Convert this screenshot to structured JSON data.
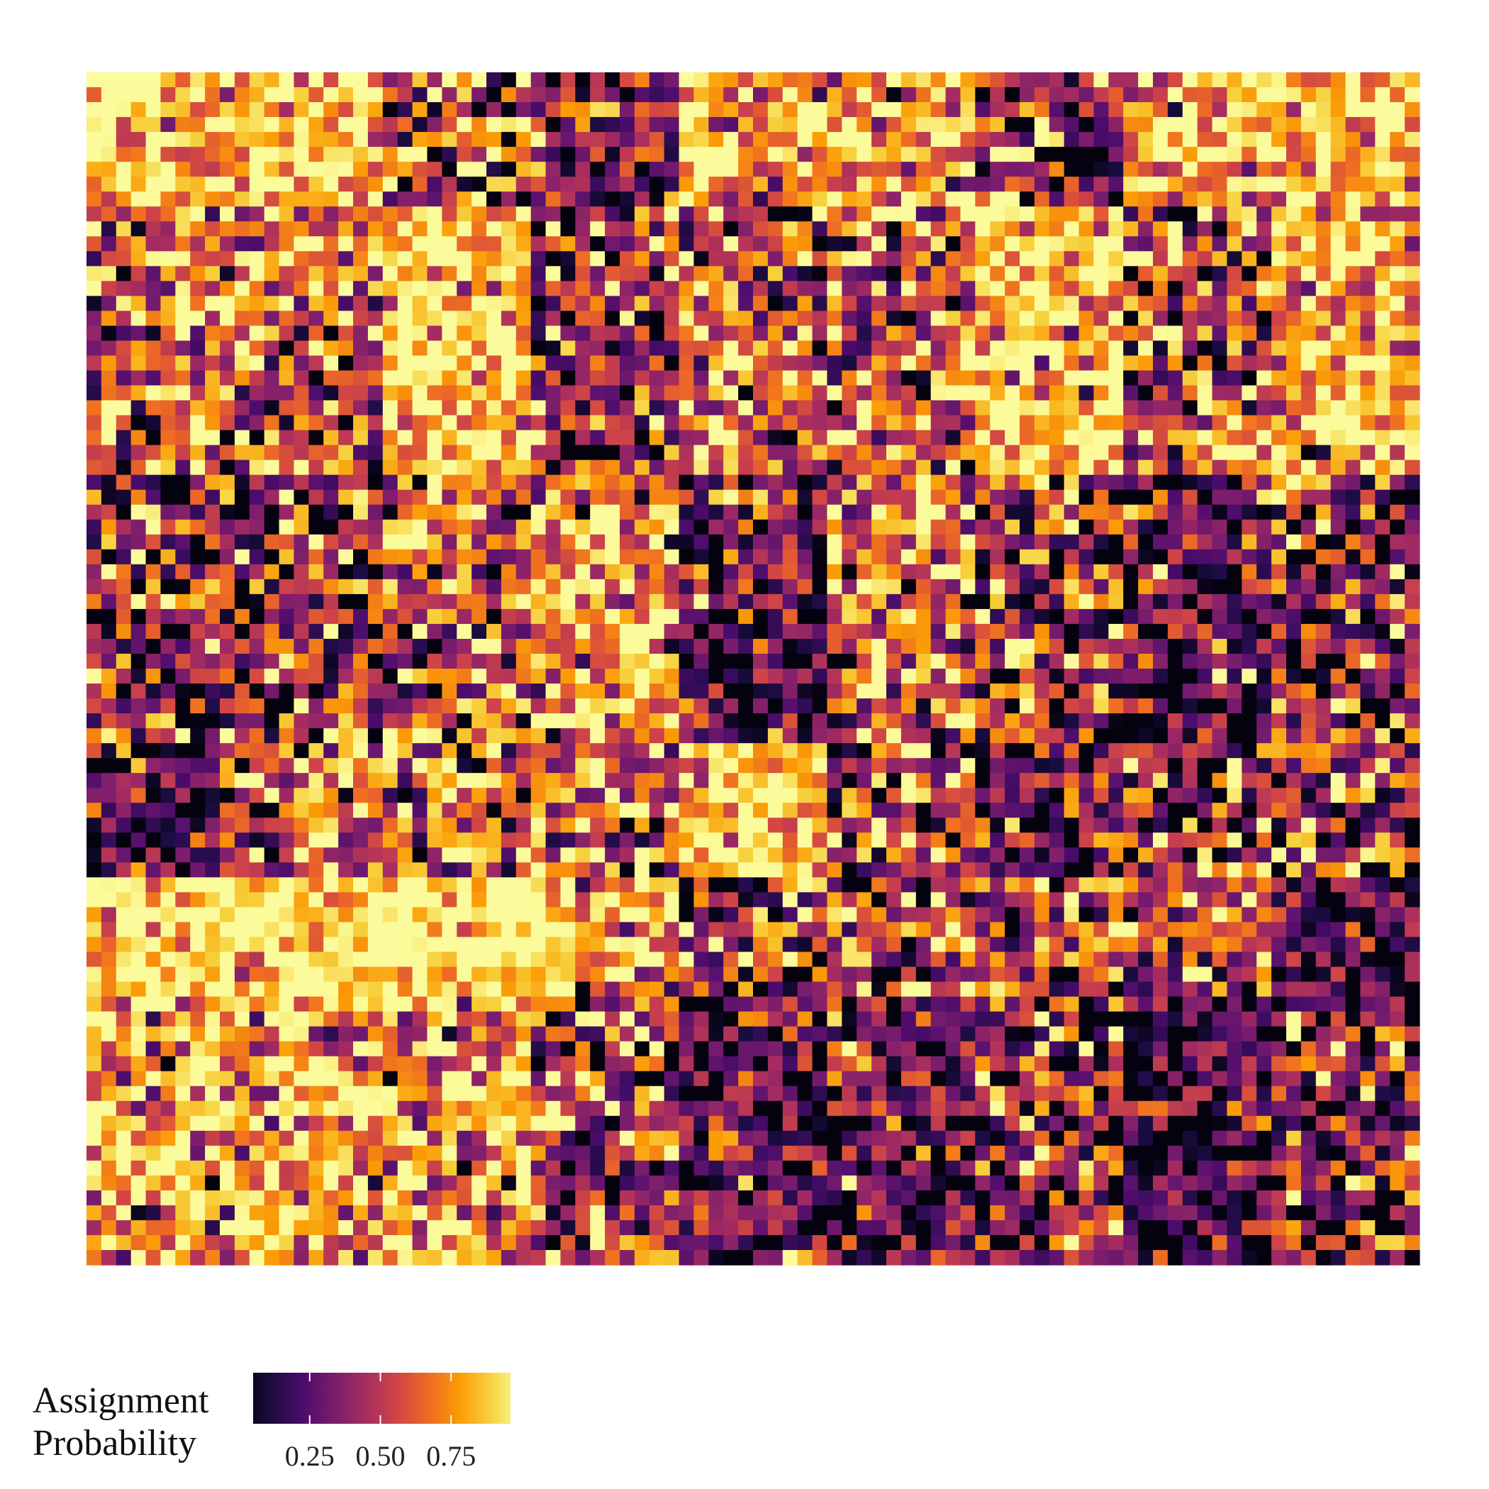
{
  "chart_data": {
    "type": "heatmap",
    "title": "",
    "xlabel": "",
    "ylabel": "",
    "grid": false,
    "rows": 80,
    "cols": 90,
    "colormap": "inferno",
    "colors": [
      "#000004",
      "#1b0c41",
      "#4a0c6b",
      "#781c6d",
      "#a52c60",
      "#cf4446",
      "#ed6925",
      "#fb9b06",
      "#f7d13d",
      "#fcffa4"
    ],
    "zlim": [
      0,
      1
    ],
    "seed": 7,
    "blocks": [
      {
        "r0": 0,
        "r1": 9,
        "c0": 0,
        "c1": 20,
        "v": 0.9
      },
      {
        "r0": 0,
        "r1": 9,
        "c0": 20,
        "c1": 30,
        "v": 0.55
      },
      {
        "r0": 0,
        "r1": 9,
        "c0": 30,
        "c1": 40,
        "v": 0.35
      },
      {
        "r0": 0,
        "r1": 9,
        "c0": 40,
        "c1": 60,
        "v": 0.75
      },
      {
        "r0": 0,
        "r1": 9,
        "c0": 60,
        "c1": 70,
        "v": 0.38
      },
      {
        "r0": 0,
        "r1": 9,
        "c0": 70,
        "c1": 90,
        "v": 0.82
      },
      {
        "r0": 9,
        "r1": 27,
        "c0": 0,
        "c1": 20,
        "v": 0.62
      },
      {
        "r0": 9,
        "r1": 27,
        "c0": 20,
        "c1": 30,
        "v": 0.86
      },
      {
        "r0": 9,
        "r1": 27,
        "c0": 30,
        "c1": 40,
        "v": 0.42
      },
      {
        "r0": 9,
        "r1": 27,
        "c0": 40,
        "c1": 60,
        "v": 0.6
      },
      {
        "r0": 9,
        "r1": 27,
        "c0": 60,
        "c1": 70,
        "v": 0.88
      },
      {
        "r0": 9,
        "r1": 27,
        "c0": 70,
        "c1": 80,
        "v": 0.55
      },
      {
        "r0": 9,
        "r1": 27,
        "c0": 80,
        "c1": 90,
        "v": 0.78
      },
      {
        "r0": 27,
        "r1": 45,
        "c0": 0,
        "c1": 20,
        "v": 0.42
      },
      {
        "r0": 27,
        "r1": 45,
        "c0": 20,
        "c1": 30,
        "v": 0.58
      },
      {
        "r0": 27,
        "r1": 45,
        "c0": 30,
        "c1": 40,
        "v": 0.78
      },
      {
        "r0": 27,
        "r1": 45,
        "c0": 40,
        "c1": 50,
        "v": 0.28
      },
      {
        "r0": 27,
        "r1": 45,
        "c0": 50,
        "c1": 60,
        "v": 0.62
      },
      {
        "r0": 27,
        "r1": 45,
        "c0": 60,
        "c1": 70,
        "v": 0.4
      },
      {
        "r0": 27,
        "r1": 45,
        "c0": 70,
        "c1": 80,
        "v": 0.28
      },
      {
        "r0": 27,
        "r1": 45,
        "c0": 80,
        "c1": 90,
        "v": 0.4
      },
      {
        "r0": 45,
        "r1": 54,
        "c0": 0,
        "c1": 10,
        "v": 0.25
      },
      {
        "r0": 45,
        "r1": 54,
        "c0": 10,
        "c1": 40,
        "v": 0.6
      },
      {
        "r0": 45,
        "r1": 54,
        "c0": 40,
        "c1": 50,
        "v": 0.85
      },
      {
        "r0": 45,
        "r1": 54,
        "c0": 50,
        "c1": 60,
        "v": 0.5
      },
      {
        "r0": 45,
        "r1": 54,
        "c0": 60,
        "c1": 70,
        "v": 0.32
      },
      {
        "r0": 45,
        "r1": 54,
        "c0": 70,
        "c1": 90,
        "v": 0.5
      },
      {
        "r0": 54,
        "r1": 62,
        "c0": 0,
        "c1": 33,
        "v": 0.92
      },
      {
        "r0": 54,
        "r1": 62,
        "c0": 33,
        "c1": 40,
        "v": 0.75
      },
      {
        "r0": 54,
        "r1": 62,
        "c0": 40,
        "c1": 60,
        "v": 0.45
      },
      {
        "r0": 54,
        "r1": 62,
        "c0": 60,
        "c1": 70,
        "v": 0.62
      },
      {
        "r0": 54,
        "r1": 62,
        "c0": 70,
        "c1": 80,
        "v": 0.55
      },
      {
        "r0": 54,
        "r1": 62,
        "c0": 80,
        "c1": 90,
        "v": 0.22
      },
      {
        "r0": 62,
        "r1": 80,
        "c0": 0,
        "c1": 30,
        "v": 0.76
      },
      {
        "r0": 62,
        "r1": 80,
        "c0": 30,
        "c1": 40,
        "v": 0.48
      },
      {
        "r0": 62,
        "r1": 80,
        "c0": 40,
        "c1": 60,
        "v": 0.26
      },
      {
        "r0": 62,
        "r1": 80,
        "c0": 60,
        "c1": 70,
        "v": 0.42
      },
      {
        "r0": 62,
        "r1": 80,
        "c0": 70,
        "c1": 80,
        "v": 0.18
      },
      {
        "r0": 62,
        "r1": 80,
        "c0": 80,
        "c1": 90,
        "v": 0.35
      }
    ],
    "legend": {
      "title": [
        "Assignment",
        "Probability"
      ],
      "placement": "bottom-left",
      "breaks": [
        0.25,
        0.5,
        0.75
      ],
      "labels": [
        "0.25",
        "0.50",
        "0.75"
      ],
      "range": [
        0.05,
        0.96
      ]
    }
  }
}
